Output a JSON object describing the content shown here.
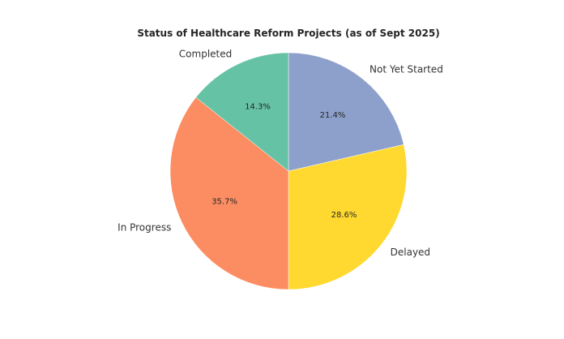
{
  "chart_data": {
    "type": "pie",
    "title": "Status of Healthcare Reform Projects (as of Sept 2025)",
    "categories": [
      "Not Yet Started",
      "Delayed",
      "In Progress",
      "Completed"
    ],
    "values": [
      21.4,
      28.6,
      35.7,
      14.3
    ],
    "value_labels": [
      "21.4%",
      "28.6%",
      "35.7%",
      "14.3%"
    ],
    "colors": [
      "#8da0cb",
      "#ffd92f",
      "#fc8d62",
      "#66c2a5"
    ],
    "start_angle_deg": 90,
    "direction": "clockwise",
    "slice_edge_color": "#ffffff"
  }
}
